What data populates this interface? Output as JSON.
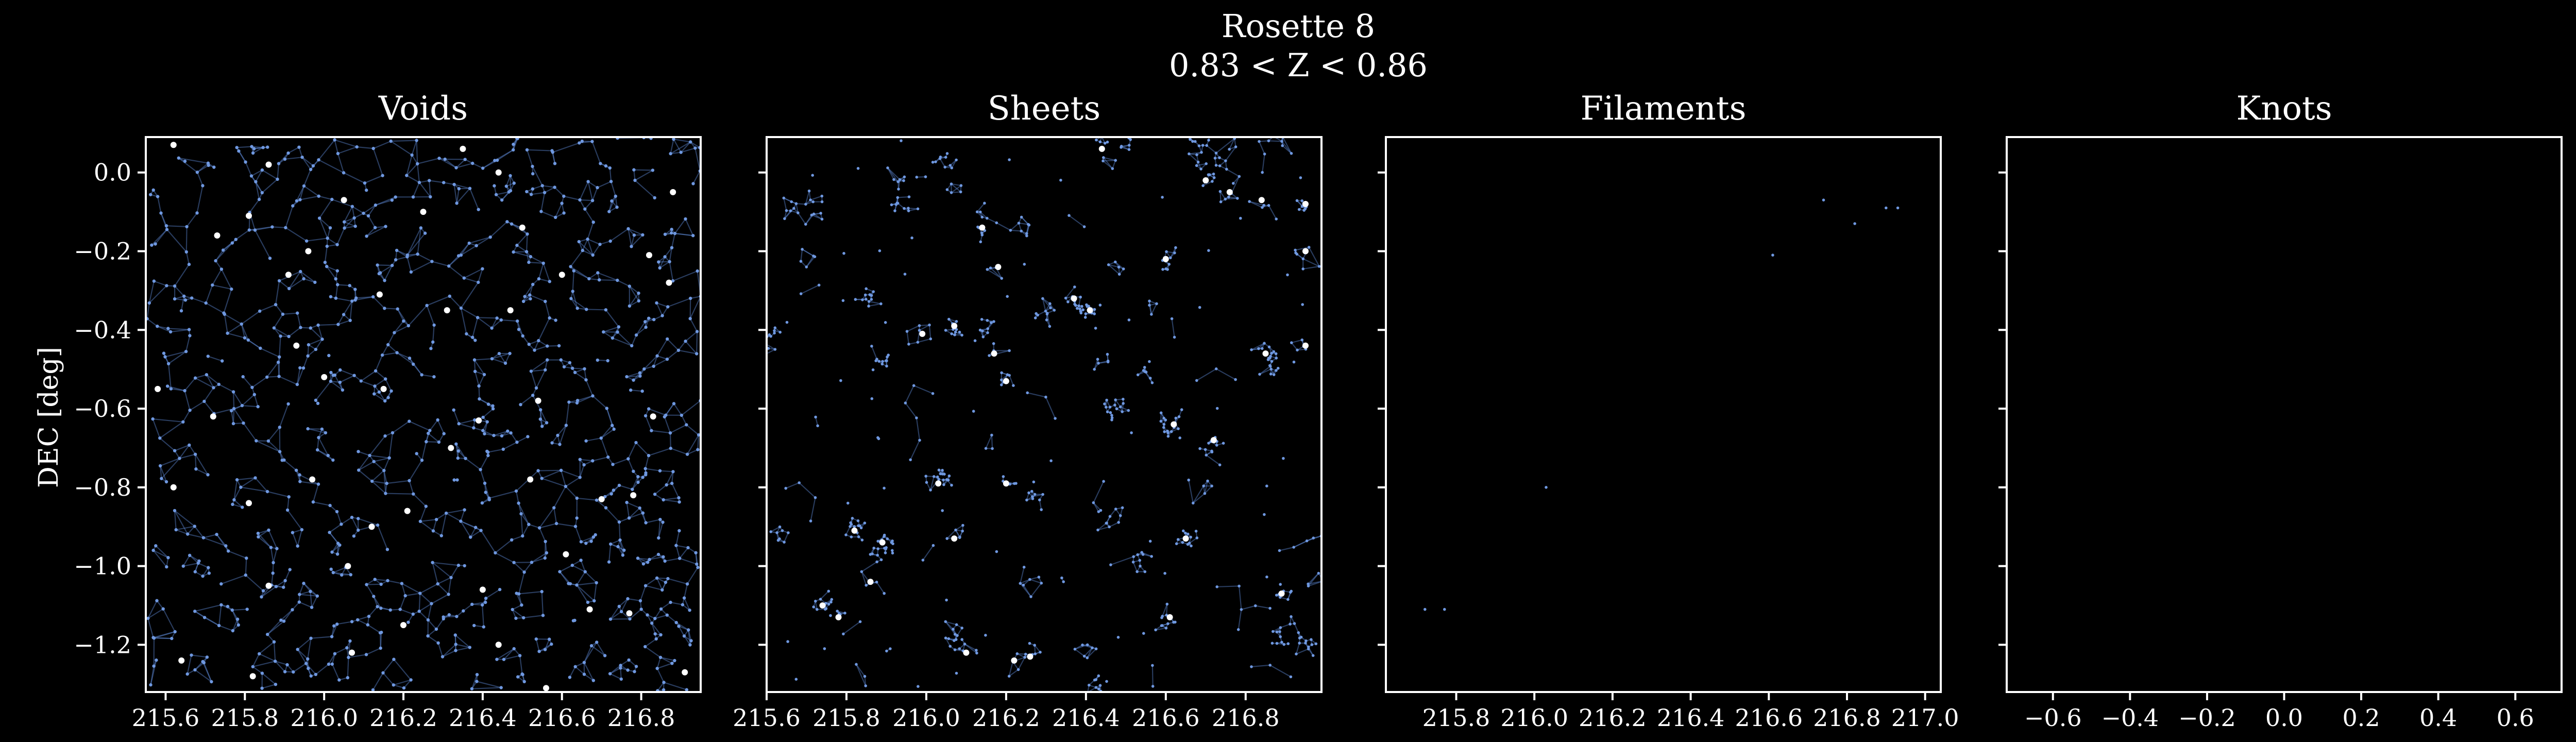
{
  "chart_data": {
    "type": "scatter",
    "title": "Rosette 8",
    "subtitle": "0.83 < Z < 0.86",
    "ylabel": "DEC [deg]",
    "colors": {
      "background": "#000000",
      "axes": "#ffffff",
      "galaxies": "#6f98e0",
      "edges": "#5b86d1",
      "critical_points": "#ffffff"
    },
    "panels": [
      {
        "title": "Voids",
        "xlim": [
          215.55,
          216.95
        ],
        "ylim": [
          -1.32,
          0.09
        ],
        "xticks": [
          215.6,
          215.8,
          216.0,
          216.2,
          216.4,
          216.6,
          216.8
        ],
        "xtick_labels": [
          "215.6",
          "215.8",
          "216.0",
          "216.2",
          "216.4",
          "216.6",
          "216.8"
        ],
        "yticks": [
          0.0,
          -0.2,
          -0.4,
          -0.6,
          -0.8,
          -1.0,
          -1.2
        ],
        "ytick_labels": [
          "0.0",
          "−0.2",
          "−0.4",
          "−0.6",
          "−0.8",
          "−1.0",
          "−1.2"
        ],
        "show_yticklabels": true,
        "density": "very high",
        "critical_points": [
          [
            215.62,
            0.07
          ],
          [
            215.86,
            0.02
          ],
          [
            216.05,
            -0.07
          ],
          [
            216.35,
            0.06
          ],
          [
            216.44,
            0.0
          ],
          [
            216.88,
            -0.05
          ],
          [
            215.73,
            -0.16
          ],
          [
            215.81,
            -0.11
          ],
          [
            215.96,
            -0.2
          ],
          [
            216.25,
            -0.1
          ],
          [
            216.5,
            -0.14
          ],
          [
            216.82,
            -0.21
          ],
          [
            215.91,
            -0.26
          ],
          [
            216.14,
            -0.31
          ],
          [
            216.31,
            -0.35
          ],
          [
            216.47,
            -0.35
          ],
          [
            216.6,
            -0.26
          ],
          [
            216.87,
            -0.28
          ],
          [
            215.58,
            -0.55
          ],
          [
            215.72,
            -0.62
          ],
          [
            215.93,
            -0.44
          ],
          [
            216.0,
            -0.52
          ],
          [
            216.15,
            -0.55
          ],
          [
            216.39,
            -0.63
          ],
          [
            216.54,
            -0.58
          ],
          [
            216.83,
            -0.62
          ],
          [
            215.62,
            -0.8
          ],
          [
            215.81,
            -0.84
          ],
          [
            215.97,
            -0.78
          ],
          [
            216.21,
            -0.86
          ],
          [
            216.32,
            -0.7
          ],
          [
            216.52,
            -0.78
          ],
          [
            216.7,
            -0.83
          ],
          [
            216.78,
            -0.82
          ],
          [
            215.86,
            -1.05
          ],
          [
            216.06,
            -1.0
          ],
          [
            216.12,
            -0.9
          ],
          [
            216.4,
            -1.06
          ],
          [
            216.61,
            -0.97
          ],
          [
            216.77,
            -1.12
          ],
          [
            215.64,
            -1.24
          ],
          [
            215.82,
            -1.28
          ],
          [
            216.07,
            -1.22
          ],
          [
            216.2,
            -1.15
          ],
          [
            216.44,
            -1.2
          ],
          [
            216.56,
            -1.31
          ],
          [
            216.67,
            -1.11
          ],
          [
            216.91,
            -1.27
          ]
        ]
      },
      {
        "title": "Sheets",
        "xlim": [
          215.6,
          216.99
        ],
        "ylim": [
          -1.32,
          0.09
        ],
        "xticks": [
          215.6,
          215.8,
          216.0,
          216.2,
          216.4,
          216.6,
          216.8
        ],
        "xtick_labels": [
          "215.6",
          "215.8",
          "216.0",
          "216.2",
          "216.4",
          "216.6",
          "216.8"
        ],
        "yticks": [
          0.0,
          -0.2,
          -0.4,
          -0.6,
          -0.8,
          -1.0,
          -1.2
        ],
        "show_yticklabels": false,
        "density": "medium",
        "critical_points": [
          [
            216.44,
            0.06
          ],
          [
            216.7,
            -0.02
          ],
          [
            216.76,
            -0.05
          ],
          [
            216.84,
            -0.07
          ],
          [
            216.95,
            -0.08
          ],
          [
            216.14,
            -0.14
          ],
          [
            216.18,
            -0.24
          ],
          [
            216.6,
            -0.22
          ],
          [
            216.95,
            -0.2
          ],
          [
            216.37,
            -0.32
          ],
          [
            216.41,
            -0.35
          ],
          [
            216.07,
            -0.39
          ],
          [
            215.99,
            -0.41
          ],
          [
            216.17,
            -0.46
          ],
          [
            216.2,
            -0.53
          ],
          [
            216.85,
            -0.46
          ],
          [
            216.95,
            -0.44
          ],
          [
            216.62,
            -0.64
          ],
          [
            216.72,
            -0.68
          ],
          [
            216.03,
            -0.79
          ],
          [
            216.2,
            -0.79
          ],
          [
            215.82,
            -0.91
          ],
          [
            215.89,
            -0.94
          ],
          [
            216.07,
            -0.93
          ],
          [
            216.65,
            -0.93
          ],
          [
            215.86,
            -1.04
          ],
          [
            215.74,
            -1.1
          ],
          [
            215.78,
            -1.13
          ],
          [
            216.89,
            -1.07
          ],
          [
            216.1,
            -1.22
          ],
          [
            216.22,
            -1.24
          ],
          [
            216.26,
            -1.23
          ],
          [
            216.61,
            -1.13
          ]
        ]
      },
      {
        "title": "Filaments",
        "xlim": [
          215.62,
          217.04
        ],
        "ylim": [
          -1.32,
          0.09
        ],
        "xticks": [
          215.8,
          216.0,
          216.2,
          216.4,
          216.6,
          216.8,
          217.0
        ],
        "xtick_labels": [
          "215.8",
          "216.0",
          "216.2",
          "216.4",
          "216.6",
          "216.8",
          "217.0"
        ],
        "yticks": [
          0.0,
          -0.2,
          -0.4,
          -0.6,
          -0.8,
          -1.0,
          -1.2
        ],
        "show_yticklabels": false,
        "density": "very sparse",
        "points": [
          [
            216.74,
            -0.07
          ],
          [
            216.82,
            -0.13
          ],
          [
            216.9,
            -0.09
          ],
          [
            216.93,
            -0.09
          ],
          [
            216.61,
            -0.21
          ],
          [
            216.03,
            -0.8
          ],
          [
            215.72,
            -1.11
          ],
          [
            215.77,
            -1.11
          ]
        ],
        "critical_points": []
      },
      {
        "title": "Knots",
        "xlim": [
          -0.72,
          0.72
        ],
        "ylim": [
          -1.32,
          0.09
        ],
        "xticks": [
          -0.6,
          -0.4,
          -0.2,
          0.0,
          0.2,
          0.4,
          0.6
        ],
        "xtick_labels": [
          "−0.6",
          "−0.4",
          "−0.2",
          "0.0",
          "0.2",
          "0.4",
          "0.6"
        ],
        "yticks": [
          0.0,
          -0.2,
          -0.4,
          -0.6,
          -0.8,
          -1.0,
          -1.2
        ],
        "show_yticklabels": false,
        "density": "empty",
        "points": [],
        "critical_points": []
      }
    ]
  }
}
